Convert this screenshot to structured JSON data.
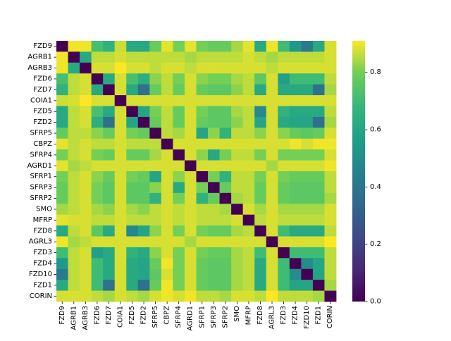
{
  "chart_data": {
    "type": "heatmap",
    "title": "",
    "xlabel": "",
    "ylabel": "",
    "labels": [
      "FZD9",
      "AGRB1",
      "AGRB3",
      "FZD6",
      "FZD7",
      "COIA1",
      "FZD5",
      "FZD2",
      "SFRP5",
      "CBPZ",
      "SFRP4",
      "AGRD1",
      "SFRP1",
      "SFRP3",
      "SFRP2",
      "SMO",
      "MFRP",
      "FZD8",
      "AGRL3",
      "FZD3",
      "FZD4",
      "FZD10",
      "FZD1",
      "CORIN"
    ],
    "colorbar": {
      "min": 0.0,
      "max": 0.91,
      "ticks": [
        "0.0",
        "0.2",
        "0.4",
        "0.6",
        "0.8"
      ],
      "colormap": "viridis"
    },
    "matrix": [
      [
        0.0,
        0.9,
        0.9,
        0.72,
        0.66,
        0.87,
        0.62,
        0.62,
        0.78,
        0.89,
        0.8,
        0.89,
        0.8,
        0.78,
        0.78,
        0.84,
        0.89,
        0.62,
        0.9,
        0.7,
        0.55,
        0.42,
        0.62,
        0.88
      ],
      [
        0.9,
        0.0,
        0.62,
        0.86,
        0.86,
        0.88,
        0.86,
        0.86,
        0.86,
        0.86,
        0.86,
        0.84,
        0.86,
        0.86,
        0.86,
        0.86,
        0.88,
        0.86,
        0.84,
        0.86,
        0.86,
        0.86,
        0.86,
        0.88
      ],
      [
        0.9,
        0.62,
        0.0,
        0.88,
        0.88,
        0.91,
        0.88,
        0.88,
        0.86,
        0.88,
        0.88,
        0.86,
        0.88,
        0.88,
        0.88,
        0.88,
        0.88,
        0.88,
        0.86,
        0.88,
        0.88,
        0.88,
        0.88,
        0.88
      ],
      [
        0.72,
        0.86,
        0.88,
        0.0,
        0.62,
        0.88,
        0.72,
        0.64,
        0.82,
        0.86,
        0.8,
        0.88,
        0.82,
        0.8,
        0.8,
        0.84,
        0.86,
        0.76,
        0.88,
        0.58,
        0.7,
        0.7,
        0.7,
        0.86
      ],
      [
        0.66,
        0.86,
        0.88,
        0.62,
        0.0,
        0.88,
        0.62,
        0.38,
        0.78,
        0.86,
        0.78,
        0.88,
        0.78,
        0.76,
        0.76,
        0.82,
        0.86,
        0.62,
        0.88,
        0.62,
        0.62,
        0.62,
        0.38,
        0.84
      ],
      [
        0.87,
        0.88,
        0.91,
        0.88,
        0.88,
        0.0,
        0.88,
        0.88,
        0.88,
        0.88,
        0.88,
        0.88,
        0.88,
        0.88,
        0.88,
        0.88,
        0.88,
        0.88,
        0.88,
        0.88,
        0.88,
        0.88,
        0.88,
        0.88
      ],
      [
        0.62,
        0.86,
        0.88,
        0.72,
        0.62,
        0.88,
        0.0,
        0.6,
        0.8,
        0.86,
        0.78,
        0.88,
        0.8,
        0.76,
        0.76,
        0.84,
        0.86,
        0.48,
        0.88,
        0.66,
        0.62,
        0.62,
        0.62,
        0.86
      ],
      [
        0.62,
        0.86,
        0.88,
        0.64,
        0.38,
        0.88,
        0.6,
        0.0,
        0.78,
        0.86,
        0.78,
        0.88,
        0.78,
        0.76,
        0.76,
        0.82,
        0.86,
        0.6,
        0.88,
        0.62,
        0.6,
        0.6,
        0.38,
        0.84
      ],
      [
        0.78,
        0.86,
        0.86,
        0.82,
        0.78,
        0.88,
        0.8,
        0.78,
        0.0,
        0.86,
        0.84,
        0.88,
        0.6,
        0.82,
        0.66,
        0.86,
        0.86,
        0.82,
        0.88,
        0.82,
        0.78,
        0.76,
        0.78,
        0.88
      ],
      [
        0.89,
        0.86,
        0.88,
        0.86,
        0.86,
        0.88,
        0.86,
        0.86,
        0.86,
        0.0,
        0.88,
        0.88,
        0.88,
        0.88,
        0.88,
        0.88,
        0.88,
        0.88,
        0.88,
        0.88,
        0.9,
        0.88,
        0.9,
        0.9
      ],
      [
        0.8,
        0.86,
        0.88,
        0.8,
        0.78,
        0.88,
        0.78,
        0.78,
        0.84,
        0.88,
        0.0,
        0.88,
        0.82,
        0.62,
        0.8,
        0.86,
        0.86,
        0.8,
        0.88,
        0.8,
        0.8,
        0.8,
        0.8,
        0.88
      ],
      [
        0.89,
        0.84,
        0.86,
        0.88,
        0.88,
        0.88,
        0.88,
        0.88,
        0.88,
        0.88,
        0.88,
        0.0,
        0.88,
        0.88,
        0.88,
        0.88,
        0.88,
        0.88,
        0.84,
        0.88,
        0.88,
        0.88,
        0.88,
        0.9
      ],
      [
        0.8,
        0.86,
        0.88,
        0.82,
        0.78,
        0.88,
        0.8,
        0.78,
        0.6,
        0.88,
        0.82,
        0.88,
        0.0,
        0.8,
        0.66,
        0.86,
        0.86,
        0.8,
        0.88,
        0.8,
        0.78,
        0.78,
        0.78,
        0.86
      ],
      [
        0.78,
        0.86,
        0.88,
        0.8,
        0.76,
        0.88,
        0.76,
        0.76,
        0.82,
        0.88,
        0.62,
        0.88,
        0.8,
        0.0,
        0.78,
        0.86,
        0.86,
        0.78,
        0.88,
        0.78,
        0.76,
        0.76,
        0.76,
        0.86
      ],
      [
        0.78,
        0.86,
        0.88,
        0.8,
        0.76,
        0.88,
        0.76,
        0.76,
        0.66,
        0.88,
        0.8,
        0.88,
        0.66,
        0.78,
        0.0,
        0.84,
        0.86,
        0.78,
        0.88,
        0.78,
        0.76,
        0.76,
        0.76,
        0.84
      ],
      [
        0.84,
        0.86,
        0.88,
        0.84,
        0.82,
        0.88,
        0.84,
        0.82,
        0.86,
        0.88,
        0.86,
        0.88,
        0.86,
        0.86,
        0.84,
        0.0,
        0.88,
        0.84,
        0.88,
        0.84,
        0.84,
        0.84,
        0.84,
        0.88
      ],
      [
        0.89,
        0.88,
        0.88,
        0.86,
        0.86,
        0.88,
        0.86,
        0.86,
        0.86,
        0.88,
        0.86,
        0.88,
        0.86,
        0.86,
        0.86,
        0.88,
        0.0,
        0.86,
        0.88,
        0.86,
        0.86,
        0.86,
        0.86,
        0.88
      ],
      [
        0.62,
        0.86,
        0.88,
        0.76,
        0.62,
        0.88,
        0.48,
        0.6,
        0.82,
        0.88,
        0.8,
        0.88,
        0.8,
        0.78,
        0.78,
        0.84,
        0.86,
        0.0,
        0.88,
        0.7,
        0.62,
        0.62,
        0.62,
        0.86
      ],
      [
        0.9,
        0.84,
        0.86,
        0.88,
        0.88,
        0.88,
        0.88,
        0.88,
        0.88,
        0.88,
        0.88,
        0.84,
        0.88,
        0.88,
        0.88,
        0.88,
        0.88,
        0.88,
        0.0,
        0.88,
        0.88,
        0.88,
        0.88,
        0.91
      ],
      [
        0.7,
        0.86,
        0.88,
        0.58,
        0.62,
        0.88,
        0.66,
        0.62,
        0.82,
        0.88,
        0.8,
        0.88,
        0.8,
        0.78,
        0.78,
        0.84,
        0.86,
        0.7,
        0.88,
        0.0,
        0.7,
        0.7,
        0.7,
        0.86
      ],
      [
        0.55,
        0.86,
        0.88,
        0.7,
        0.62,
        0.88,
        0.62,
        0.6,
        0.78,
        0.9,
        0.8,
        0.88,
        0.78,
        0.76,
        0.76,
        0.84,
        0.86,
        0.62,
        0.88,
        0.7,
        0.0,
        0.5,
        0.6,
        0.86
      ],
      [
        0.42,
        0.86,
        0.88,
        0.7,
        0.62,
        0.88,
        0.62,
        0.6,
        0.76,
        0.88,
        0.8,
        0.88,
        0.78,
        0.76,
        0.76,
        0.84,
        0.86,
        0.62,
        0.88,
        0.7,
        0.5,
        0.0,
        0.6,
        0.86
      ],
      [
        0.62,
        0.86,
        0.88,
        0.7,
        0.38,
        0.88,
        0.62,
        0.38,
        0.78,
        0.9,
        0.8,
        0.88,
        0.78,
        0.76,
        0.76,
        0.84,
        0.86,
        0.62,
        0.88,
        0.7,
        0.6,
        0.6,
        0.0,
        0.84
      ],
      [
        0.88,
        0.88,
        0.88,
        0.86,
        0.84,
        0.88,
        0.86,
        0.84,
        0.88,
        0.9,
        0.88,
        0.9,
        0.86,
        0.86,
        0.84,
        0.88,
        0.88,
        0.86,
        0.91,
        0.86,
        0.86,
        0.86,
        0.84,
        0.0
      ]
    ]
  }
}
